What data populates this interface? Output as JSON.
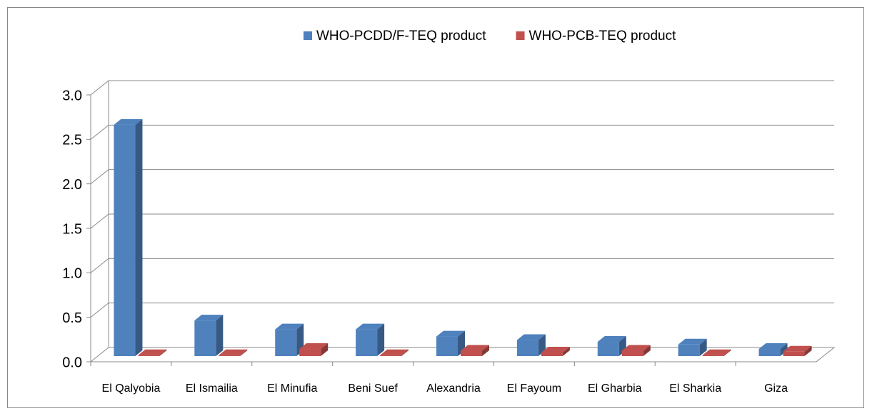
{
  "chart_data": {
    "type": "bar3d",
    "categories": [
      "El Qalyobia",
      "El Ismailia",
      "El Minufia",
      "Beni Suef",
      "Alexandria",
      "El Fayoum",
      "El Gharbia",
      "El Sharkia",
      "Giza"
    ],
    "series": [
      {
        "name": "WHO-PCDD/F-TEQ product",
        "color": "#4f81bd",
        "values": [
          2.6,
          0.4,
          0.3,
          0.3,
          0.22,
          0.18,
          0.16,
          0.13,
          0.08
        ]
      },
      {
        "name": "WHO-PCB-TEQ product",
        "color": "#c0504d",
        "values": [
          0.01,
          0.01,
          0.08,
          0.01,
          0.06,
          0.04,
          0.06,
          0.01,
          0.05
        ]
      }
    ],
    "ylim": [
      0,
      3
    ],
    "yticks": [
      {
        "value": 0,
        "label": "0.0"
      },
      0.5,
      {
        "value": 1,
        "label": "1.0"
      },
      1.5,
      {
        "value": 2,
        "label": "2.0"
      },
      2.5,
      {
        "value": 3,
        "label": "3.0"
      }
    ],
    "grid": true,
    "legend": "top"
  }
}
